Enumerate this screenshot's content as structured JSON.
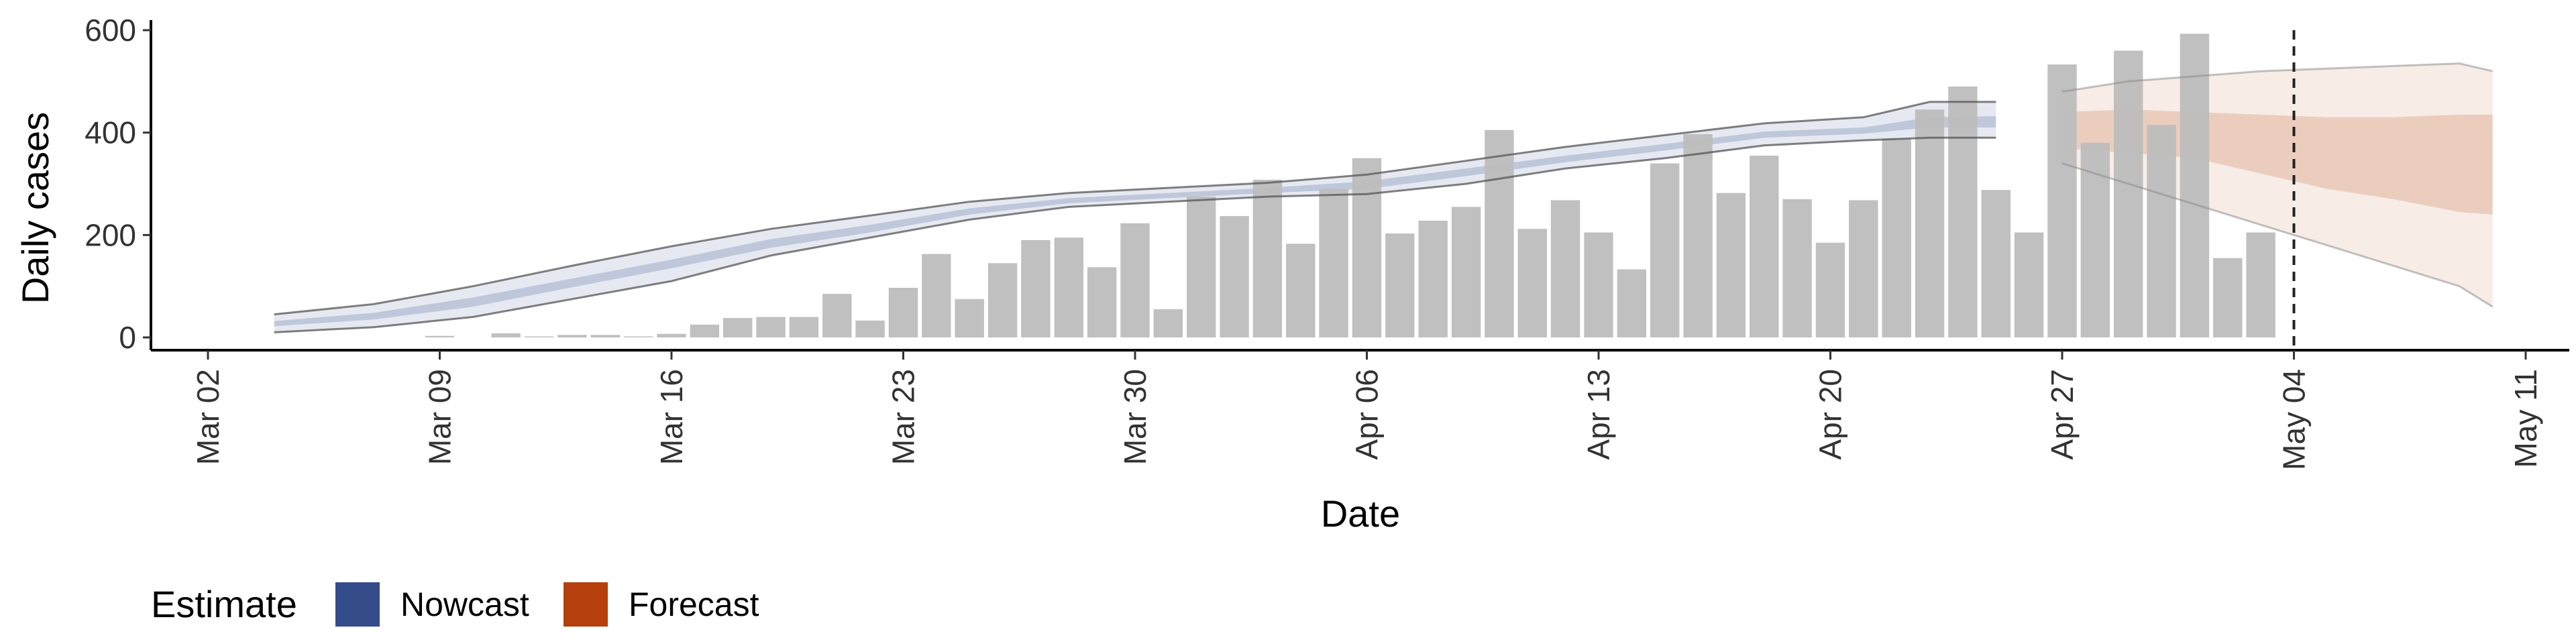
{
  "chart_data": {
    "type": "bar",
    "xlabel": "Date",
    "ylabel": "Daily cases",
    "ylim": [
      0,
      620
    ],
    "y_ticks": [
      0,
      200,
      400,
      600
    ],
    "y_tick_labels": [
      "0",
      "200",
      "400",
      "600"
    ],
    "x_tick_dates": [
      "2020-03-02",
      "2020-03-09",
      "2020-03-16",
      "2020-03-23",
      "2020-03-30",
      "2020-04-06",
      "2020-04-13",
      "2020-04-20",
      "2020-04-27",
      "2020-05-04",
      "2020-05-11"
    ],
    "x_tick_labels": [
      "Mar 02",
      "Mar 09",
      "Mar 16",
      "Mar 23",
      "Mar 30",
      "Apr 06",
      "Apr 13",
      "Apr 20",
      "Apr 27",
      "May 04",
      "May 11"
    ],
    "grid": false,
    "legend_position": "bottom-left",
    "legend_title": "Estimate",
    "legend": [
      {
        "label": "Nowcast",
        "color": "#354C8B"
      },
      {
        "label": "Forecast",
        "color": "#B5400D"
      }
    ],
    "reference_line_date": "2020-05-04",
    "bar_color": "#BDBDBD",
    "cases": {
      "dates": [
        "2020-03-09",
        "2020-03-10",
        "2020-03-11",
        "2020-03-12",
        "2020-03-13",
        "2020-03-14",
        "2020-03-15",
        "2020-03-16",
        "2020-03-17",
        "2020-03-18",
        "2020-03-19",
        "2020-03-20",
        "2020-03-21",
        "2020-03-22",
        "2020-03-23",
        "2020-03-24",
        "2020-03-25",
        "2020-03-26",
        "2020-03-27",
        "2020-03-28",
        "2020-03-29",
        "2020-03-30",
        "2020-03-31",
        "2020-04-01",
        "2020-04-02",
        "2020-04-03",
        "2020-04-04",
        "2020-04-05",
        "2020-04-06",
        "2020-04-07",
        "2020-04-08",
        "2020-04-09",
        "2020-04-10",
        "2020-04-11",
        "2020-04-12",
        "2020-04-13",
        "2020-04-14",
        "2020-04-15",
        "2020-04-16",
        "2020-04-17",
        "2020-04-18",
        "2020-04-19",
        "2020-04-20",
        "2020-04-21",
        "2020-04-22",
        "2020-04-23",
        "2020-04-24",
        "2020-04-25",
        "2020-04-26",
        "2020-04-27",
        "2020-04-28",
        "2020-04-29",
        "2020-04-30",
        "2020-05-01",
        "2020-05-02",
        "2020-05-03",
        "2020-05-04"
      ],
      "values": [
        3,
        0,
        8,
        2,
        5,
        5,
        2,
        7,
        25,
        38,
        40,
        40,
        85,
        33,
        97,
        163,
        75,
        145,
        190,
        195,
        137,
        223,
        55,
        275,
        237,
        308,
        183,
        290,
        350,
        203,
        228,
        255,
        405,
        212,
        268,
        205,
        133,
        340,
        397,
        282,
        355,
        270,
        185,
        268,
        388,
        445,
        490,
        288,
        205,
        533,
        380,
        560,
        415,
        593,
        155,
        205,
        0
      ]
    },
    "nowcast": {
      "dates": [
        "2020-03-04",
        "2020-03-07",
        "2020-03-10",
        "2020-03-13",
        "2020-03-16",
        "2020-03-19",
        "2020-03-22",
        "2020-03-25",
        "2020-03-28",
        "2020-03-31",
        "2020-04-03",
        "2020-04-06",
        "2020-04-09",
        "2020-04-12",
        "2020-04-15",
        "2020-04-18",
        "2020-04-21",
        "2020-04-23",
        "2020-04-25"
      ],
      "lower90": [
        10,
        20,
        40,
        75,
        110,
        160,
        195,
        230,
        255,
        265,
        275,
        280,
        300,
        330,
        350,
        375,
        385,
        390,
        390
      ],
      "lower50": [
        22,
        35,
        60,
        98,
        135,
        175,
        205,
        240,
        262,
        272,
        282,
        290,
        315,
        342,
        365,
        390,
        398,
        410,
        410
      ],
      "upper50": [
        32,
        48,
        78,
        115,
        152,
        192,
        220,
        252,
        272,
        282,
        292,
        305,
        330,
        355,
        378,
        402,
        410,
        430,
        432
      ],
      "upper90": [
        45,
        65,
        100,
        140,
        178,
        212,
        238,
        265,
        282,
        292,
        302,
        318,
        345,
        372,
        395,
        418,
        430,
        460,
        460
      ]
    },
    "forecast": {
      "dates": [
        "2020-04-27",
        "2020-04-29",
        "2020-05-01",
        "2020-05-03",
        "2020-05-05",
        "2020-05-07",
        "2020-05-09",
        "2020-05-10"
      ],
      "lower90": [
        340,
        300,
        260,
        220,
        180,
        140,
        100,
        60
      ],
      "lower50": [
        370,
        360,
        350,
        320,
        290,
        270,
        245,
        240
      ],
      "upper50": [
        440,
        445,
        440,
        435,
        430,
        430,
        435,
        435
      ],
      "upper90": [
        480,
        500,
        510,
        520,
        525,
        530,
        535,
        520
      ]
    }
  }
}
